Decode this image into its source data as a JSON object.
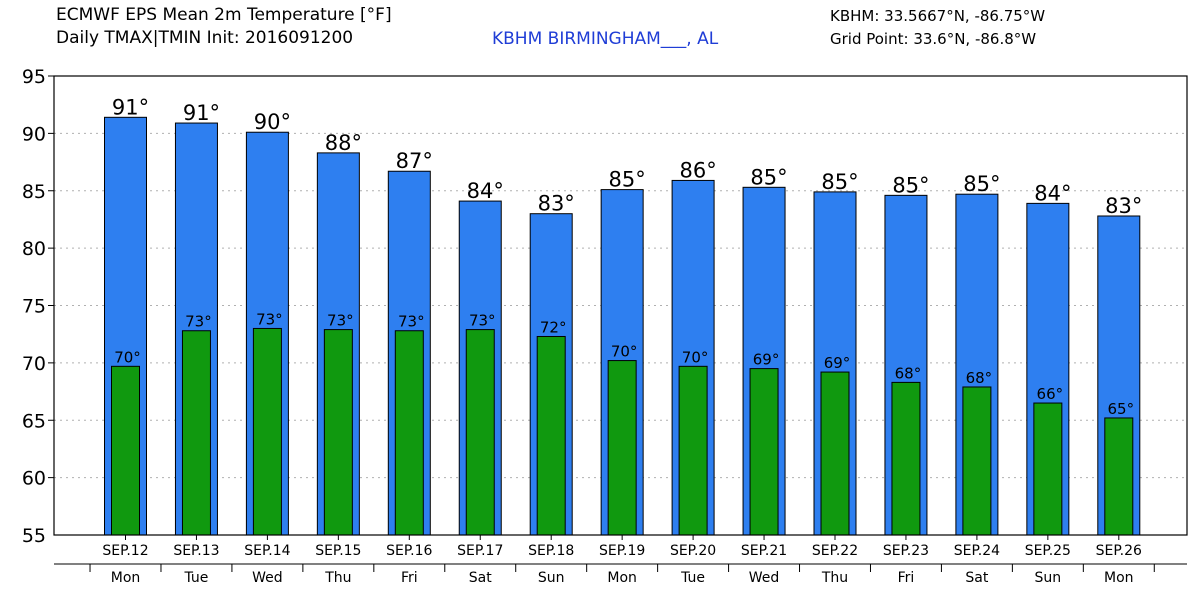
{
  "header": {
    "title": "ECMWF EPS Mean 2m Temperature [°F]",
    "subtitle": "Daily TMAX|TMIN Init: 2016091200",
    "station": "KBHM BIRMINGHAM___, AL",
    "coordinates": "KBHM: 33.5667°N, -86.75°W",
    "grid_point": "Grid Point: 33.6°N, -86.8°W"
  },
  "colors": {
    "tmax_bar": "#2e7ff0",
    "tmin_bar": "#10990f",
    "grid": "#b0b0b0"
  },
  "chart_data": {
    "type": "bar",
    "title": "ECMWF EPS Mean 2m Temperature [°F]",
    "xlabel": "",
    "ylabel": "",
    "ylim": [
      55,
      95
    ],
    "yticks": [
      55,
      60,
      65,
      70,
      75,
      80,
      85,
      90,
      95
    ],
    "grid": true,
    "categories": [
      "SEP.12",
      "SEP.13",
      "SEP.14",
      "SEP.15",
      "SEP.16",
      "SEP.17",
      "SEP.18",
      "SEP.19",
      "SEP.20",
      "SEP.21",
      "SEP.22",
      "SEP.23",
      "SEP.24",
      "SEP.25",
      "SEP.26"
    ],
    "days": [
      "Mon",
      "Tue",
      "Wed",
      "Thu",
      "Fri",
      "Sat",
      "Sun",
      "Mon",
      "Tue",
      "Wed",
      "Thu",
      "Fri",
      "Sat",
      "Sun",
      "Mon"
    ],
    "series": [
      {
        "key": "tmax",
        "values": [
          91.4,
          90.9,
          90.1,
          88.3,
          86.7,
          84.1,
          83.0,
          85.1,
          85.9,
          85.3,
          84.9,
          84.6,
          84.7,
          83.9,
          82.8
        ],
        "labels": [
          "91°",
          "91°",
          "90°",
          "88°",
          "87°",
          "84°",
          "83°",
          "85°",
          "86°",
          "85°",
          "85°",
          "85°",
          "85°",
          "84°",
          "83°"
        ]
      },
      {
        "key": "tmin",
        "values": [
          69.7,
          72.8,
          73.0,
          72.9,
          72.8,
          72.9,
          72.3,
          70.2,
          69.7,
          69.5,
          69.2,
          68.3,
          67.9,
          66.5,
          65.2
        ],
        "labels": [
          "70°",
          "73°",
          "73°",
          "73°",
          "73°",
          "73°",
          "72°",
          "70°",
          "70°",
          "69°",
          "69°",
          "68°",
          "68°",
          "66°",
          "65°"
        ]
      }
    ]
  }
}
